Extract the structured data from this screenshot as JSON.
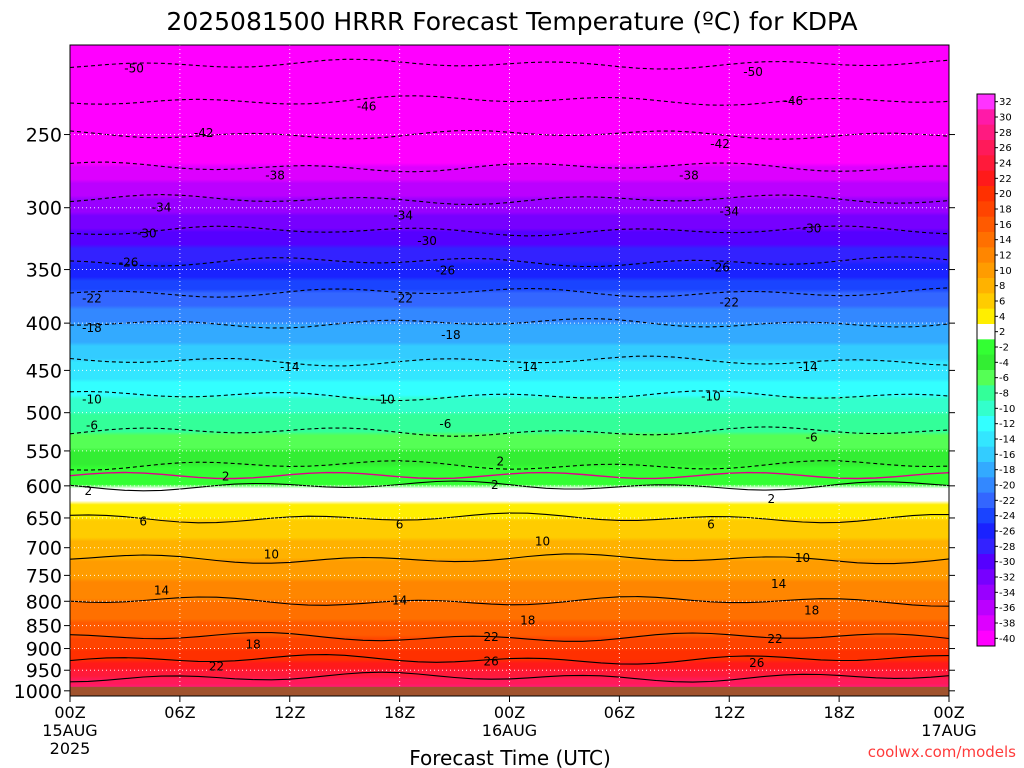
{
  "chart_data": {
    "type": "heatmap",
    "title": "2025081500 HRRR Forecast Temperature (ºC) for KDPA",
    "xlabel": "Forecast Time (UTC)",
    "ylabel": "",
    "x_ticks": [
      {
        "hour": 0,
        "label": "00Z",
        "sub": [
          "15AUG",
          "2025"
        ]
      },
      {
        "hour": 6,
        "label": "06Z",
        "sub": []
      },
      {
        "hour": 12,
        "label": "12Z",
        "sub": []
      },
      {
        "hour": 18,
        "label": "18Z",
        "sub": []
      },
      {
        "hour": 24,
        "label": "00Z",
        "sub": [
          "16AUG"
        ]
      },
      {
        "hour": 30,
        "label": "06Z",
        "sub": []
      },
      {
        "hour": 36,
        "label": "12Z",
        "sub": []
      },
      {
        "hour": 42,
        "label": "18Z",
        "sub": []
      },
      {
        "hour": 48,
        "label": "00Z",
        "sub": [
          "17AUG"
        ]
      }
    ],
    "xlim": [
      0,
      48
    ],
    "y_ticks": [
      250,
      300,
      350,
      400,
      450,
      500,
      550,
      600,
      650,
      700,
      750,
      800,
      850,
      900,
      950,
      1000
    ],
    "y_units": "hPa",
    "y_scale": "log",
    "ylim": [
      200,
      1013
    ],
    "grid": true,
    "ground_level_hpa": 990,
    "ground_color": "#a0522d",
    "color_levels": [
      32,
      30,
      28,
      26,
      24,
      22,
      20,
      18,
      16,
      14,
      12,
      10,
      8,
      6,
      4,
      2,
      -2,
      -4,
      -6,
      -8,
      -10,
      -12,
      -14,
      -16,
      -18,
      -20,
      -22,
      -24,
      -26,
      -28,
      -30,
      -32,
      -34,
      -36,
      -38,
      -40
    ],
    "colorbar_labels": [
      "32",
      "30",
      "28",
      "26",
      "24",
      "22",
      "20",
      "18",
      "16",
      "14",
      "12",
      "10",
      "8",
      "6",
      "4",
      "2",
      "-2",
      "-4",
      "-6",
      "-8",
      "-10",
      "-12",
      "-14",
      "-16",
      "-18",
      "-20",
      "-22",
      "-24",
      "-26",
      "-28",
      "-30",
      "-32",
      "-34",
      "-36",
      "-38",
      "-40"
    ],
    "colorbar_colors": [
      "#ff33ff",
      "#ff1aa8",
      "#ff1a80",
      "#ff1a5a",
      "#ff1a3a",
      "#ff1a1a",
      "#ff3000",
      "#ff4400",
      "#ff5a00",
      "#ff7000",
      "#ff8600",
      "#ff9c00",
      "#ffb200",
      "#ffcc00",
      "#ffee00",
      "#ffffff",
      "#33ff33",
      "#33ee33",
      "#55ff55",
      "#33ff99",
      "#33ffcc",
      "#33ffff",
      "#33e6ff",
      "#33ccff",
      "#33aaff",
      "#3388ff",
      "#3366ff",
      "#1a44ff",
      "#1a22ff",
      "#3322ff",
      "#5500ff",
      "#7700ff",
      "#9900ff",
      "#bb00ff",
      "#dd00ff",
      "#ff00ff"
    ],
    "isotherm_profile": [
      {
        "p": 1013,
        "t": 30
      },
      {
        "p": 975,
        "t": 27
      },
      {
        "p": 950,
        "t": 24
      },
      {
        "p": 925,
        "t": 22
      },
      {
        "p": 900,
        "t": 20
      },
      {
        "p": 875,
        "t": 18
      },
      {
        "p": 850,
        "t": 16.5
      },
      {
        "p": 800,
        "t": 14
      },
      {
        "p": 750,
        "t": 11.5
      },
      {
        "p": 700,
        "t": 9
      },
      {
        "p": 650,
        "t": 6
      },
      {
        "p": 620,
        "t": 3.5
      },
      {
        "p": 600,
        "t": 2
      },
      {
        "p": 570,
        "t": -2
      },
      {
        "p": 550,
        "t": -4
      },
      {
        "p": 500,
        "t": -8
      },
      {
        "p": 450,
        "t": -13
      },
      {
        "p": 400,
        "t": -18
      },
      {
        "p": 350,
        "t": -25
      },
      {
        "p": 300,
        "t": -33
      },
      {
        "p": 250,
        "t": -42
      },
      {
        "p": 220,
        "t": -48
      },
      {
        "p": 200,
        "t": -52
      }
    ],
    "contour_labels": [
      {
        "text": "-50",
        "x": 3.5,
        "p": 212
      },
      {
        "text": "-46",
        "x": 16.2,
        "p": 233
      },
      {
        "text": "-50",
        "x": 37.3,
        "p": 214
      },
      {
        "text": "-46",
        "x": 39.5,
        "p": 230
      },
      {
        "text": "-42",
        "x": 7.3,
        "p": 249
      },
      {
        "text": "-42",
        "x": 35.5,
        "p": 256
      },
      {
        "text": "-38",
        "x": 11.2,
        "p": 277
      },
      {
        "text": "-38",
        "x": 33.8,
        "p": 277
      },
      {
        "text": "-34",
        "x": 5,
        "p": 300
      },
      {
        "text": "-34",
        "x": 18.2,
        "p": 306
      },
      {
        "text": "-34",
        "x": 36,
        "p": 303
      },
      {
        "text": "-30",
        "x": 4.2,
        "p": 320
      },
      {
        "text": "-30",
        "x": 19.5,
        "p": 326
      },
      {
        "text": "-30",
        "x": 40.5,
        "p": 316
      },
      {
        "text": "-26",
        "x": 3.2,
        "p": 344
      },
      {
        "text": "-26",
        "x": 20.5,
        "p": 351
      },
      {
        "text": "-26",
        "x": 35.5,
        "p": 348
      },
      {
        "text": "-22",
        "x": 1.2,
        "p": 376
      },
      {
        "text": "-22",
        "x": 18.2,
        "p": 376
      },
      {
        "text": "-22",
        "x": 36,
        "p": 380
      },
      {
        "text": "-18",
        "x": 1.2,
        "p": 405
      },
      {
        "text": "-18",
        "x": 20.8,
        "p": 412
      },
      {
        "text": "-14",
        "x": 12,
        "p": 446
      },
      {
        "text": "-14",
        "x": 25,
        "p": 446
      },
      {
        "text": "-14",
        "x": 40.3,
        "p": 446
      },
      {
        "text": "-10",
        "x": 1.2,
        "p": 484
      },
      {
        "text": "-10",
        "x": 17.2,
        "p": 484
      },
      {
        "text": "-10",
        "x": 35,
        "p": 480
      },
      {
        "text": "-6",
        "x": 1.2,
        "p": 516
      },
      {
        "text": "-6",
        "x": 20.5,
        "p": 514
      },
      {
        "text": "-6",
        "x": 40.5,
        "p": 532
      },
      {
        "text": "2",
        "x": 23.5,
        "p": 565
      },
      {
        "text": "2",
        "x": 8.5,
        "p": 586
      },
      {
        "text": "2",
        "x": 23.2,
        "p": 599
      },
      {
        "text": "2",
        "x": 1,
        "p": 608
      },
      {
        "text": "2",
        "x": 38.3,
        "p": 620
      },
      {
        "text": "6",
        "x": 4,
        "p": 656
      },
      {
        "text": "6",
        "x": 18,
        "p": 661
      },
      {
        "text": "6",
        "x": 35,
        "p": 661
      },
      {
        "text": "10",
        "x": 25.8,
        "p": 689
      },
      {
        "text": "10",
        "x": 11,
        "p": 712
      },
      {
        "text": "10",
        "x": 40,
        "p": 718
      },
      {
        "text": "14",
        "x": 5,
        "p": 779
      },
      {
        "text": "14",
        "x": 18,
        "p": 798
      },
      {
        "text": "14",
        "x": 38.7,
        "p": 766
      },
      {
        "text": "18",
        "x": 25,
        "p": 839
      },
      {
        "text": "18",
        "x": 40.5,
        "p": 819
      },
      {
        "text": "18",
        "x": 10,
        "p": 891
      },
      {
        "text": "22",
        "x": 23,
        "p": 874
      },
      {
        "text": "22",
        "x": 38.5,
        "p": 879
      },
      {
        "text": "22",
        "x": 8,
        "p": 941
      },
      {
        "text": "26",
        "x": 23,
        "p": 929
      },
      {
        "text": "26",
        "x": 37.5,
        "p": 933
      }
    ]
  },
  "credit": "coolwx.com/models"
}
